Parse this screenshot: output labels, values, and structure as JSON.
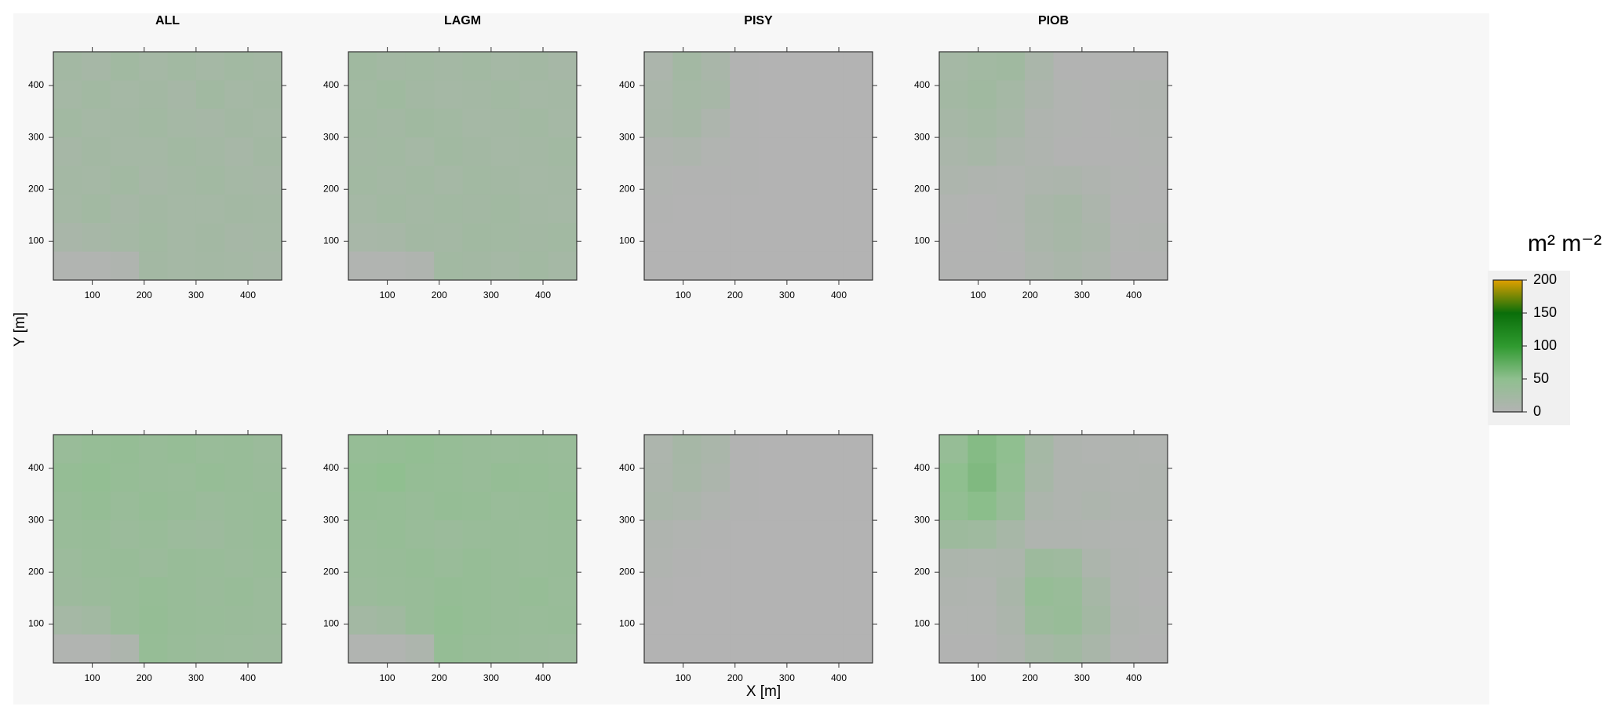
{
  "figure": {
    "xlabel": "X [m]",
    "ylabel": "Y [m]",
    "colorbar": {
      "label": "m² m⁻²",
      "lim": [
        0,
        200
      ],
      "ticks": [
        0,
        50,
        100,
        150,
        200
      ],
      "colors": [
        "#b3b3b3",
        "#8fbf8f",
        "#2f9a2f",
        "#0a6e0a",
        "#e0a000"
      ]
    }
  },
  "chart_data": [
    {
      "type": "heatmap",
      "title": "ALL",
      "xlim": [
        25,
        465
      ],
      "ylim": [
        25,
        465
      ],
      "xticks": [
        100,
        200,
        300,
        400
      ],
      "yticks": [
        100,
        200,
        300,
        400
      ],
      "x": [
        52.5,
        107.5,
        162.5,
        217.5,
        272.5,
        327.5,
        382.5,
        437.5
      ],
      "y": [
        437.5,
        382.5,
        327.5,
        272.5,
        217.5,
        162.5,
        107.5,
        52.5
      ],
      "values": [
        [
          22,
          18,
          25,
          20,
          24,
          19,
          23,
          21
        ],
        [
          20,
          24,
          19,
          22,
          18,
          25,
          20,
          22
        ],
        [
          23,
          19,
          21,
          24,
          20,
          18,
          22,
          19
        ],
        [
          18,
          22,
          20,
          19,
          23,
          21,
          17,
          22
        ],
        [
          21,
          20,
          23,
          18,
          21,
          24,
          20,
          18
        ],
        [
          19,
          23,
          18,
          22,
          20,
          19,
          22,
          21
        ],
        [
          14,
          16,
          20,
          23,
          19,
          22,
          18,
          20
        ],
        [
          3,
          3,
          5,
          22,
          20,
          21,
          19,
          17
        ]
      ]
    },
    {
      "type": "heatmap",
      "title": "LAGM",
      "xlim": [
        25,
        465
      ],
      "ylim": [
        25,
        465
      ],
      "xticks": [
        100,
        200,
        300,
        400
      ],
      "yticks": [
        100,
        200,
        300,
        400
      ],
      "x": [
        52.5,
        107.5,
        162.5,
        217.5,
        272.5,
        327.5,
        382.5,
        437.5
      ],
      "y": [
        437.5,
        382.5,
        327.5,
        272.5,
        217.5,
        162.5,
        107.5,
        52.5
      ],
      "values": [
        [
          26,
          22,
          24,
          21,
          23,
          20,
          22,
          18
        ],
        [
          24,
          28,
          22,
          20,
          21,
          23,
          19,
          21
        ],
        [
          25,
          22,
          26,
          23,
          19,
          21,
          24,
          20
        ],
        [
          22,
          24,
          20,
          25,
          22,
          20,
          21,
          23
        ],
        [
          24,
          21,
          23,
          20,
          24,
          22,
          19,
          21
        ],
        [
          20,
          23,
          21,
          24,
          22,
          25,
          21,
          20
        ],
        [
          15,
          17,
          22,
          21,
          25,
          23,
          22,
          24
        ],
        [
          3,
          3,
          6,
          24,
          22,
          20,
          23,
          19
        ]
      ]
    },
    {
      "type": "heatmap",
      "title": "PISY",
      "xlim": [
        25,
        465
      ],
      "ylim": [
        25,
        465
      ],
      "xticks": [
        100,
        200,
        300,
        400
      ],
      "yticks": [
        100,
        200,
        300,
        400
      ],
      "x": [
        52.5,
        107.5,
        162.5,
        217.5,
        272.5,
        327.5,
        382.5,
        437.5
      ],
      "y": [
        437.5,
        382.5,
        327.5,
        272.5,
        217.5,
        162.5,
        107.5,
        52.5
      ],
      "values": [
        [
          10,
          22,
          14,
          2,
          0,
          0,
          0,
          0
        ],
        [
          12,
          20,
          16,
          1,
          0,
          0,
          0,
          0
        ],
        [
          14,
          18,
          8,
          1,
          0,
          0,
          0,
          0
        ],
        [
          6,
          8,
          3,
          1,
          0,
          0,
          0,
          0
        ],
        [
          3,
          2,
          1,
          2,
          0,
          0,
          0,
          0
        ],
        [
          1,
          0,
          0,
          0,
          0,
          0,
          0,
          0
        ],
        [
          0,
          0,
          0,
          0,
          0,
          0,
          0,
          0
        ],
        [
          0,
          0,
          0,
          0,
          0,
          0,
          0,
          0
        ]
      ]
    },
    {
      "type": "heatmap",
      "title": "PIOB",
      "xlim": [
        25,
        465
      ],
      "ylim": [
        25,
        465
      ],
      "xticks": [
        100,
        200,
        300,
        400
      ],
      "yticks": [
        100,
        200,
        300,
        400
      ],
      "x": [
        52.5,
        107.5,
        162.5,
        217.5,
        272.5,
        327.5,
        382.5,
        437.5
      ],
      "y": [
        437.5,
        382.5,
        327.5,
        272.5,
        217.5,
        162.5,
        107.5,
        52.5
      ],
      "values": [
        [
          20,
          24,
          26,
          12,
          2,
          1,
          2,
          1
        ],
        [
          22,
          26,
          20,
          10,
          3,
          2,
          4,
          6
        ],
        [
          18,
          22,
          16,
          6,
          3,
          2,
          3,
          4
        ],
        [
          12,
          16,
          10,
          5,
          2,
          2,
          2,
          3
        ],
        [
          8,
          6,
          4,
          8,
          10,
          6,
          3,
          2
        ],
        [
          3,
          2,
          4,
          14,
          18,
          10,
          2,
          2
        ],
        [
          2,
          2,
          3,
          12,
          16,
          12,
          3,
          4
        ],
        [
          1,
          1,
          2,
          8,
          12,
          8,
          2,
          1
        ]
      ]
    },
    {
      "type": "heatmap",
      "xlim": [
        25,
        465
      ],
      "ylim": [
        25,
        465
      ],
      "xticks": [
        100,
        200,
        300,
        400
      ],
      "yticks": [
        100,
        200,
        300,
        400
      ],
      "x": [
        52.5,
        107.5,
        162.5,
        217.5,
        272.5,
        327.5,
        382.5,
        437.5
      ],
      "y": [
        437.5,
        382.5,
        327.5,
        272.5,
        217.5,
        162.5,
        107.5,
        52.5
      ],
      "values": [
        [
          36,
          40,
          42,
          38,
          40,
          36,
          38,
          34
        ],
        [
          42,
          45,
          40,
          38,
          36,
          40,
          37,
          35
        ],
        [
          38,
          42,
          36,
          40,
          38,
          34,
          36,
          38
        ],
        [
          36,
          38,
          34,
          36,
          32,
          30,
          35,
          37
        ],
        [
          32,
          36,
          38,
          34,
          38,
          36,
          34,
          36
        ],
        [
          30,
          34,
          36,
          40,
          38,
          35,
          37,
          33
        ],
        [
          20,
          24,
          36,
          42,
          38,
          36,
          35,
          34
        ],
        [
          3,
          3,
          8,
          40,
          36,
          34,
          32,
          30
        ]
      ]
    },
    {
      "type": "heatmap",
      "xlim": [
        25,
        465
      ],
      "ylim": [
        25,
        465
      ],
      "xticks": [
        100,
        200,
        300,
        400
      ],
      "yticks": [
        100,
        200,
        300,
        400
      ],
      "x": [
        52.5,
        107.5,
        162.5,
        217.5,
        272.5,
        327.5,
        382.5,
        437.5
      ],
      "y": [
        437.5,
        382.5,
        327.5,
        272.5,
        217.5,
        162.5,
        107.5,
        52.5
      ],
      "values": [
        [
          40,
          42,
          44,
          40,
          38,
          36,
          38,
          36
        ],
        [
          44,
          48,
          42,
          40,
          38,
          42,
          40,
          38
        ],
        [
          42,
          40,
          38,
          42,
          40,
          36,
          38,
          40
        ],
        [
          38,
          40,
          36,
          34,
          36,
          38,
          36,
          38
        ],
        [
          36,
          38,
          40,
          36,
          40,
          38,
          36,
          38
        ],
        [
          34,
          36,
          38,
          42,
          40,
          38,
          40,
          36
        ],
        [
          22,
          26,
          38,
          44,
          40,
          38,
          36,
          38
        ],
        [
          3,
          3,
          8,
          42,
          38,
          36,
          34,
          32
        ]
      ]
    },
    {
      "type": "heatmap",
      "xlim": [
        25,
        465
      ],
      "ylim": [
        25,
        465
      ],
      "xticks": [
        100,
        200,
        300,
        400
      ],
      "yticks": [
        100,
        200,
        300,
        400
      ],
      "x": [
        52.5,
        107.5,
        162.5,
        217.5,
        272.5,
        327.5,
        382.5,
        437.5
      ],
      "y": [
        437.5,
        382.5,
        327.5,
        272.5,
        217.5,
        162.5,
        107.5,
        52.5
      ],
      "values": [
        [
          8,
          18,
          12,
          2,
          0,
          0,
          0,
          0
        ],
        [
          10,
          16,
          10,
          1,
          0,
          0,
          0,
          0
        ],
        [
          12,
          10,
          4,
          1,
          0,
          0,
          0,
          0
        ],
        [
          6,
          3,
          1,
          0,
          0,
          0,
          0,
          0
        ],
        [
          4,
          1,
          0,
          0,
          0,
          0,
          0,
          0
        ],
        [
          1,
          0,
          0,
          0,
          0,
          0,
          0,
          0
        ],
        [
          0,
          0,
          0,
          0,
          0,
          0,
          0,
          0
        ],
        [
          0,
          0,
          0,
          0,
          0,
          0,
          0,
          0
        ]
      ]
    },
    {
      "type": "heatmap",
      "xlim": [
        25,
        465
      ],
      "ylim": [
        25,
        465
      ],
      "xticks": [
        100,
        200,
        300,
        400
      ],
      "yticks": [
        100,
        200,
        300,
        400
      ],
      "x": [
        52.5,
        107.5,
        162.5,
        217.5,
        272.5,
        327.5,
        382.5,
        437.5
      ],
      "y": [
        437.5,
        382.5,
        327.5,
        272.5,
        217.5,
        162.5,
        107.5,
        52.5
      ],
      "values": [
        [
          40,
          55,
          48,
          20,
          5,
          3,
          4,
          3
        ],
        [
          50,
          58,
          45,
          16,
          5,
          6,
          4,
          5
        ],
        [
          44,
          52,
          38,
          10,
          6,
          8,
          6,
          5
        ],
        [
          30,
          28,
          16,
          6,
          5,
          4,
          3,
          3
        ],
        [
          10,
          8,
          10,
          30,
          28,
          10,
          4,
          3
        ],
        [
          6,
          4,
          14,
          40,
          36,
          18,
          4,
          2
        ],
        [
          3,
          3,
          10,
          34,
          38,
          22,
          5,
          3
        ],
        [
          2,
          2,
          5,
          18,
          24,
          14,
          3,
          2
        ]
      ]
    }
  ]
}
